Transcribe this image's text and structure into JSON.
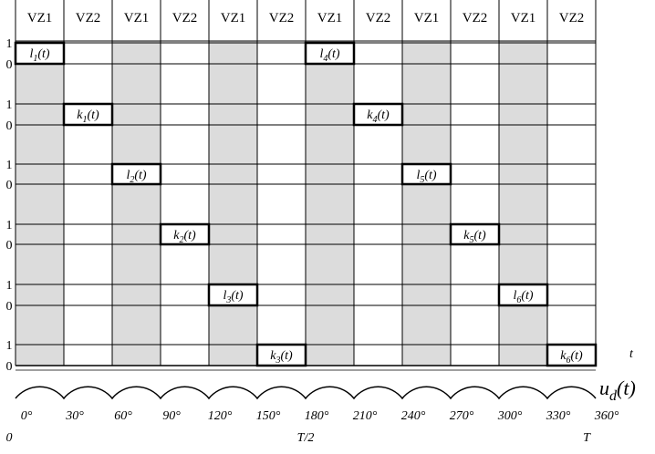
{
  "header": {
    "columns": [
      "VZ1",
      "VZ2",
      "VZ1",
      "VZ2",
      "VZ1",
      "VZ2",
      "VZ1",
      "VZ2",
      "VZ1",
      "VZ2",
      "VZ1",
      "VZ2"
    ]
  },
  "rows": [
    {
      "high": "1",
      "low": "0",
      "pulses": [
        {
          "name": "l",
          "index": "1",
          "arg": "(t)"
        },
        {
          "name": "l",
          "index": "4",
          "arg": "(t)"
        }
      ]
    },
    {
      "high": "1",
      "low": "0",
      "pulses": [
        {
          "name": "k",
          "index": "1",
          "arg": "(t)"
        },
        {
          "name": "k",
          "index": "4",
          "arg": "(t)"
        }
      ]
    },
    {
      "high": "1",
      "low": "0",
      "pulses": [
        {
          "name": "l",
          "index": "2",
          "arg": "(t)"
        },
        {
          "name": "l",
          "index": "5",
          "arg": "(t)"
        }
      ]
    },
    {
      "high": "1",
      "low": "0",
      "pulses": [
        {
          "name": "k",
          "index": "2",
          "arg": "(t)"
        },
        {
          "name": "k",
          "index": "5",
          "arg": "(t)"
        }
      ]
    },
    {
      "high": "1",
      "low": "0",
      "pulses": [
        {
          "name": "l",
          "index": "3",
          "arg": "(t)"
        },
        {
          "name": "l",
          "index": "6",
          "arg": "(t)"
        }
      ]
    },
    {
      "high": "1",
      "low": "0",
      "pulses": [
        {
          "name": "k",
          "index": "3",
          "arg": "(t)"
        },
        {
          "name": "k",
          "index": "6",
          "arg": "(t)"
        }
      ]
    }
  ],
  "time_axis": {
    "label": "t"
  },
  "waveform": {
    "name": "u",
    "index": "d",
    "arg": "(t)"
  },
  "angles": [
    "0°",
    "30°",
    "60°",
    "90°",
    "120°",
    "150°",
    "180°",
    "210°",
    "240°",
    "270°",
    "300°",
    "330°",
    "360°"
  ],
  "period_marks": [
    "0",
    "T/2",
    "T"
  ]
}
